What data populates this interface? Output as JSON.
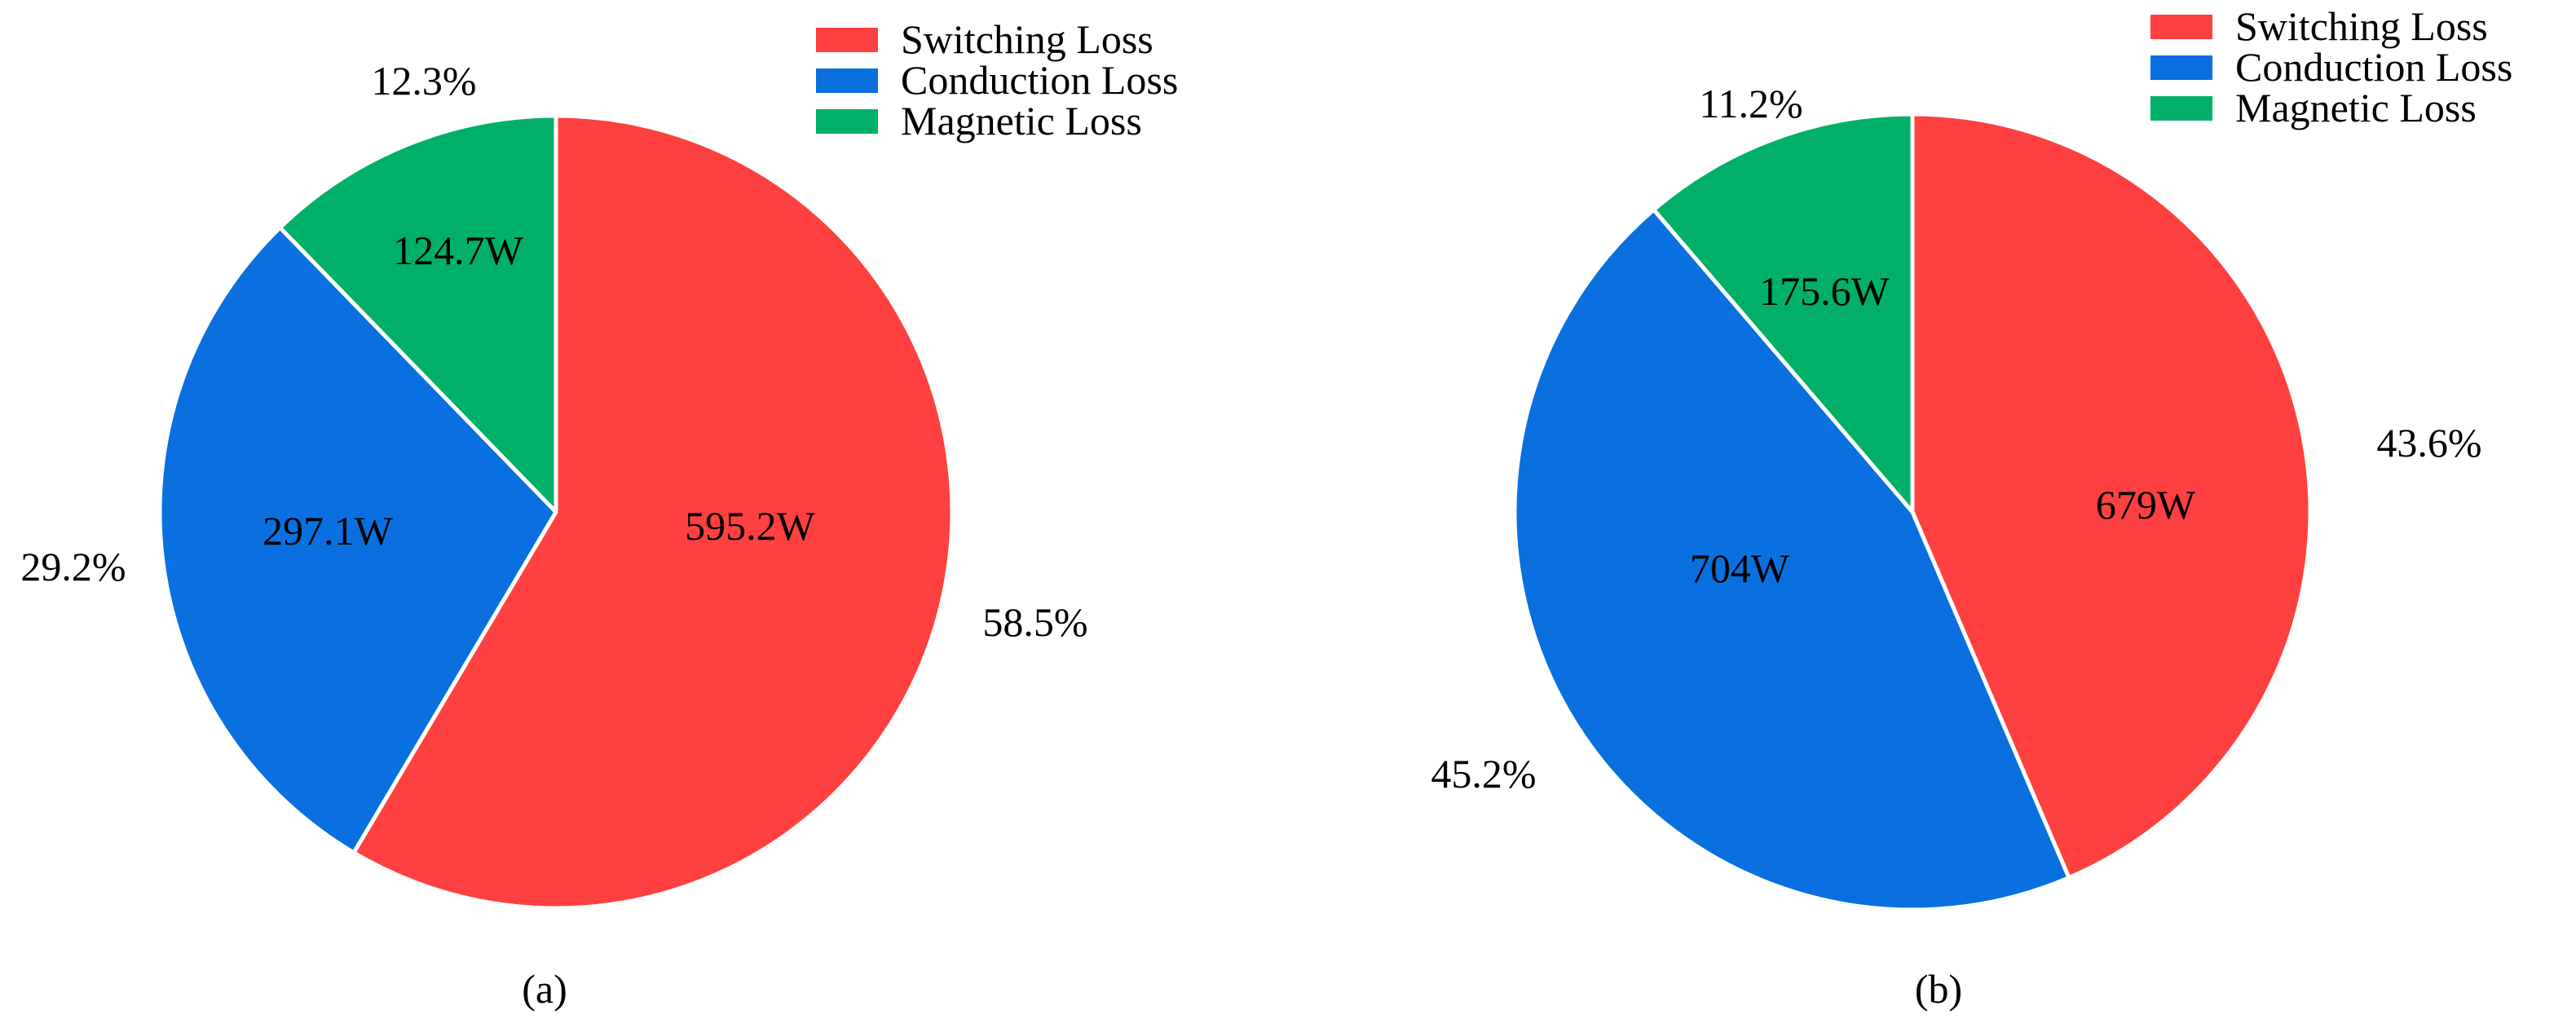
{
  "colors": {
    "switching": "#FF4040",
    "conduction": "#0A70E0",
    "magnetic": "#00B068",
    "slice_border": "#FFFFFF"
  },
  "chart_data": [
    {
      "type": "pie",
      "caption": "(a)",
      "legend_position": "top-right",
      "slices": [
        {
          "label": "Switching Loss",
          "value_label": "595.2W",
          "value": 595.2,
          "percent": 58.5,
          "percent_label": "58.5%"
        },
        {
          "label": "Conduction Loss",
          "value_label": "297.1W",
          "value": 297.1,
          "percent": 29.2,
          "percent_label": "29.2%"
        },
        {
          "label": "Magnetic Loss",
          "value_label": "124.7W",
          "value": 124.7,
          "percent": 12.3,
          "percent_label": "12.3%"
        }
      ]
    },
    {
      "type": "pie",
      "caption": "(b)",
      "legend_position": "top-right",
      "slices": [
        {
          "label": "Switching Loss",
          "value_label": "679W",
          "value": 679,
          "percent": 43.6,
          "percent_label": "43.6%"
        },
        {
          "label": "Conduction Loss",
          "value_label": "704W",
          "value": 704,
          "percent": 45.2,
          "percent_label": "45.2%"
        },
        {
          "label": "Magnetic Loss",
          "value_label": "175.6W",
          "value": 175.6,
          "percent": 11.2,
          "percent_label": "11.2%"
        }
      ]
    }
  ]
}
